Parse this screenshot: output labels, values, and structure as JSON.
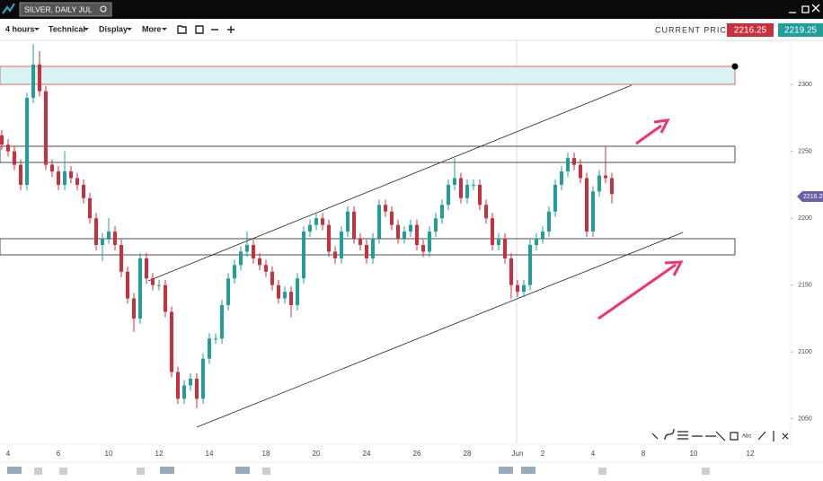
{
  "header": {
    "symbol": "SILVER, DAILY JUL"
  },
  "toolbar": {
    "menus": [
      "4 hours",
      "Technical",
      "Display",
      "More"
    ],
    "current_price_label": "CURRENT PRICE:",
    "bid": "2216.25",
    "ask": "2219.25"
  },
  "chart_data": {
    "type": "candlestick",
    "categories": [
      null,
      "4",
      null,
      null,
      null,
      null,
      null,
      null,
      null,
      "6",
      null,
      null,
      null,
      null,
      null,
      null,
      null,
      "10",
      null,
      null,
      null,
      null,
      null,
      null,
      null,
      "12",
      null,
      null,
      null,
      null,
      null,
      null,
      null,
      "14",
      null,
      null,
      null,
      null,
      null,
      null,
      null,
      null,
      "18",
      null,
      null,
      null,
      null,
      null,
      null,
      null,
      "20",
      null,
      null,
      null,
      null,
      null,
      null,
      null,
      "24",
      null,
      null,
      null,
      null,
      null,
      null,
      null,
      "26",
      null,
      null,
      null,
      null,
      null,
      null,
      null,
      "28",
      null,
      null,
      null,
      null,
      null,
      null,
      null,
      "Jun",
      null,
      null,
      null,
      "2",
      null,
      null,
      null,
      null,
      null,
      null,
      null,
      "4",
      null,
      null,
      null,
      null,
      null,
      null,
      null,
      "8",
      null,
      null,
      null,
      null,
      null,
      null,
      null,
      "10",
      null,
      null,
      null,
      null,
      null,
      null,
      null,
      null,
      "12"
    ],
    "open": [
      2262,
      2255,
      2250,
      2240,
      2225,
      2290,
      2315,
      2295,
      2240,
      2235,
      2225,
      2235,
      2230,
      2225,
      2215,
      2200,
      2180,
      2185,
      2190,
      2180,
      2160,
      2140,
      2125,
      2170,
      2155,
      2150,
      2150,
      2130,
      2085,
      2065,
      2075,
      2080,
      2065,
      2095,
      2110,
      2110,
      2135,
      2155,
      2165,
      2175,
      2180,
      2170,
      2165,
      2160,
      2150,
      2140,
      2145,
      2135,
      2155,
      2190,
      2195,
      2200,
      2195,
      2175,
      2170,
      2190,
      2205,
      2185,
      2180,
      2170,
      2185,
      2210,
      2205,
      2195,
      2185,
      2190,
      2195,
      2180,
      2175,
      2190,
      2200,
      2210,
      2225,
      2230,
      2215,
      2225,
      2225,
      2210,
      2200,
      2180,
      2185,
      2170,
      2150,
      2145,
      2150,
      2180,
      2185,
      2190,
      2205,
      2225,
      2235,
      2245,
      2240,
      2230,
      2190,
      2220,
      2232,
      2230,
      null,
      null,
      null,
      null,
      null,
      null,
      null,
      null,
      null,
      null,
      null,
      null,
      null,
      null,
      null,
      null,
      null,
      null,
      null,
      null,
      null,
      null
    ],
    "high": [
      2266,
      2259,
      2254,
      2244,
      2294,
      2330,
      2325,
      2299,
      2244,
      2239,
      2250,
      2239,
      2234,
      2229,
      2219,
      2204,
      2189,
      2200,
      2194,
      2184,
      2164,
      2144,
      2174,
      2174,
      2159,
      2154,
      2154,
      2134,
      2089,
      2079,
      2084,
      2084,
      2099,
      2114,
      2114,
      2139,
      2159,
      2169,
      2179,
      2190,
      2184,
      2174,
      2169,
      2164,
      2154,
      2149,
      2149,
      2159,
      2194,
      2199,
      2204,
      2204,
      2199,
      2179,
      2194,
      2209,
      2209,
      2189,
      2184,
      2189,
      2214,
      2214,
      2209,
      2199,
      2194,
      2199,
      2199,
      2184,
      2194,
      2204,
      2214,
      2229,
      2245,
      2234,
      2229,
      2229,
      2229,
      2214,
      2204,
      2189,
      2189,
      2174,
      2154,
      2154,
      2184,
      2189,
      2194,
      2209,
      2229,
      2239,
      2249,
      2249,
      2244,
      2234,
      2224,
      2236,
      2254,
      2234,
      null,
      null,
      null,
      null,
      null,
      null,
      null,
      null,
      null,
      null,
      null,
      null,
      null,
      null,
      null,
      null,
      null,
      null,
      null,
      null,
      null,
      null
    ],
    "low": [
      2251,
      2246,
      2236,
      2221,
      2221,
      2286,
      2291,
      2236,
      2231,
      2221,
      2221,
      2226,
      2221,
      2211,
      2196,
      2176,
      2168,
      2181,
      2176,
      2156,
      2136,
      2115,
      2121,
      2151,
      2146,
      2146,
      2126,
      2081,
      2061,
      2061,
      2071,
      2058,
      2061,
      2091,
      2106,
      2106,
      2131,
      2151,
      2161,
      2171,
      2166,
      2161,
      2156,
      2146,
      2136,
      2136,
      2126,
      2131,
      2151,
      2186,
      2191,
      2191,
      2171,
      2166,
      2166,
      2186,
      2181,
      2176,
      2166,
      2166,
      2181,
      2201,
      2191,
      2181,
      2181,
      2186,
      2176,
      2171,
      2171,
      2186,
      2196,
      2206,
      2221,
      2211,
      2211,
      2221,
      2206,
      2196,
      2176,
      2176,
      2166,
      2140,
      2141,
      2141,
      2146,
      2176,
      2181,
      2186,
      2201,
      2221,
      2231,
      2236,
      2226,
      2186,
      2186,
      2216,
      2226,
      2211,
      null,
      null,
      null,
      null,
      null,
      null,
      null,
      null,
      null,
      null,
      null,
      null,
      null,
      null,
      null,
      null,
      null,
      null,
      null,
      null,
      null,
      null
    ],
    "close": [
      2255,
      2250,
      2240,
      2225,
      2290,
      2315,
      2295,
      2240,
      2235,
      2225,
      2235,
      2230,
      2225,
      2215,
      2200,
      2180,
      2185,
      2190,
      2180,
      2160,
      2140,
      2125,
      2170,
      2155,
      2150,
      2150,
      2130,
      2085,
      2065,
      2075,
      2080,
      2065,
      2095,
      2110,
      2110,
      2135,
      2155,
      2165,
      2175,
      2180,
      2170,
      2165,
      2160,
      2150,
      2140,
      2145,
      2135,
      2155,
      2190,
      2195,
      2200,
      2195,
      2175,
      2170,
      2190,
      2205,
      2185,
      2180,
      2170,
      2185,
      2210,
      2205,
      2195,
      2185,
      2190,
      2195,
      2180,
      2175,
      2190,
      2200,
      2210,
      2225,
      2230,
      2215,
      2225,
      2225,
      2210,
      2200,
      2180,
      2185,
      2170,
      2150,
      2145,
      2150,
      2180,
      2185,
      2190,
      2205,
      2225,
      2235,
      2245,
      2240,
      2230,
      2190,
      2220,
      2232,
      2230,
      2218,
      null,
      null,
      null,
      null,
      null,
      null,
      null,
      null,
      null,
      null,
      null,
      null,
      null,
      null,
      null,
      null,
      null,
      null,
      null,
      null,
      null,
      null
    ],
    "up_color": "#1f9e9a",
    "down_color": "#c9303e",
    "ylim": [
      2031,
      2333
    ],
    "yticks": [
      2050,
      2100,
      2150,
      2200,
      2250,
      2300
    ],
    "last_price": 2216.25
  }
}
